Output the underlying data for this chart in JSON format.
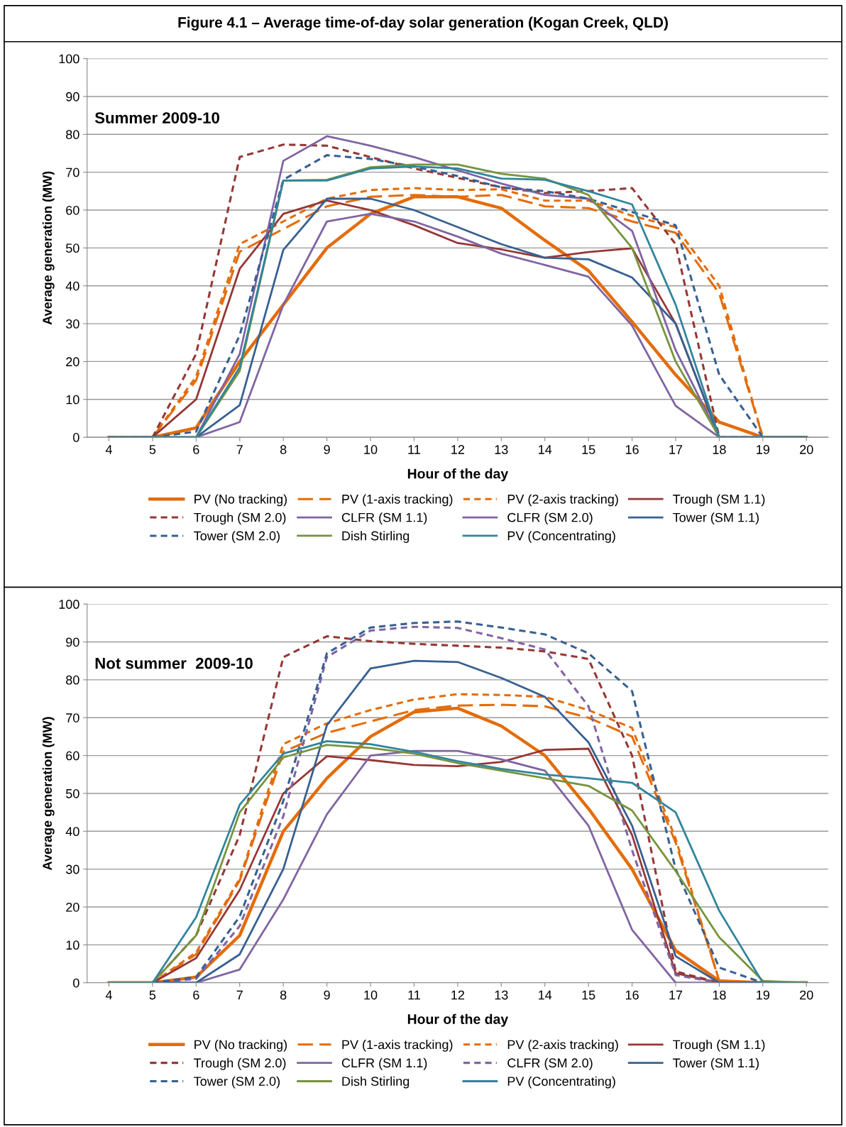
{
  "chart_data": [
    {
      "type": "line",
      "title": "Figure 4.1 – Average time-of-day solar generation (Kogan Creek, QLD)",
      "subtitle": "Summer 2009-10",
      "xlabel": "Hour of the day",
      "ylabel": "Average generation (MW)",
      "categories": [
        "4",
        "5",
        "6",
        "7",
        "8",
        "9",
        "10",
        "11",
        "12",
        "13",
        "14",
        "15",
        "16",
        "17",
        "18",
        "19",
        "20"
      ],
      "ylim": [
        0,
        100
      ],
      "yticks": [
        0,
        10,
        20,
        30,
        40,
        50,
        60,
        70,
        80,
        90,
        100
      ],
      "grid": "y",
      "legend": "bottom",
      "marker": "none",
      "series": [
        {
          "name": "PV (No tracking)",
          "color": "#e46c0a",
          "line_style": "solid",
          "values": [
            0,
            0,
            2.5,
            20,
            35,
            50,
            59,
            63.5,
            63.5,
            60.5,
            52,
            44,
            30.5,
            16.5,
            4,
            0,
            0
          ]
        },
        {
          "name": "PV (1-axis tracking)",
          "color": "#e46c0a",
          "line_style": "dashed",
          "values": [
            0,
            0,
            15,
            49,
            55,
            61,
            63.5,
            64,
            63.5,
            64,
            61,
            60.5,
            57,
            54,
            38,
            0,
            0
          ]
        },
        {
          "name": "PV (2-axis tracking)",
          "color": "#e46c0a",
          "line_style": "dotted",
          "values": [
            0,
            0,
            16,
            51,
            57,
            63,
            65.3,
            65.8,
            65.3,
            65.5,
            62.5,
            62.5,
            58.5,
            55.5,
            40,
            0,
            0
          ]
        },
        {
          "name": "Trough (SM 1.1)",
          "color": "#953735",
          "line_style": "solid",
          "values": [
            0,
            0,
            10,
            44.5,
            59,
            62.5,
            60,
            56,
            51.3,
            49.6,
            47.4,
            48.9,
            49.9,
            30,
            0,
            0,
            0
          ]
        },
        {
          "name": "Trough (SM 2.0)",
          "color": "#953735",
          "line_style": "dotted",
          "values": [
            0,
            0,
            22,
            74,
            77.3,
            77,
            74,
            71,
            68.5,
            66,
            64.5,
            65,
            65.8,
            51,
            0,
            0,
            0
          ]
        },
        {
          "name": "CLFR (SM 1.1)",
          "color": "#8064a2",
          "line_style": "solid",
          "values": [
            0,
            0,
            0,
            4,
            35,
            57,
            59,
            57,
            53,
            48.5,
            45.5,
            42.4,
            29.5,
            8.3,
            0,
            0,
            0
          ]
        },
        {
          "name": "CLFR (SM 2.0)",
          "color": "#8064a2",
          "line_style": "solid",
          "values": [
            0,
            0,
            0,
            22,
            73,
            79.5,
            77,
            74,
            70.5,
            67,
            64,
            63,
            54.5,
            23,
            0,
            0,
            0
          ]
        },
        {
          "name": "Tower (SM 1.1)",
          "color": "#376092",
          "line_style": "solid",
          "values": [
            0,
            0,
            0,
            8.5,
            49.5,
            63,
            63,
            60,
            55.5,
            51,
            47.4,
            47,
            42.2,
            30,
            0,
            0,
            0
          ]
        },
        {
          "name": "Tower (SM 2.0)",
          "color": "#376092",
          "line_style": "dotted",
          "values": [
            0,
            0,
            1.5,
            27,
            68,
            74.5,
            73.5,
            71.5,
            69,
            66,
            65,
            63,
            59.5,
            56,
            16.5,
            0,
            0
          ]
        },
        {
          "name": "Dish Stirling",
          "color": "#77933c",
          "line_style": "solid",
          "values": [
            0,
            0,
            0,
            17.5,
            67.8,
            68,
            71.3,
            72,
            72,
            69.6,
            68.3,
            64,
            50,
            20,
            0,
            0,
            0
          ]
        },
        {
          "name": "PV (Concentrating)",
          "color": "#31859c",
          "line_style": "solid",
          "values": [
            0,
            0,
            0,
            18.5,
            67.8,
            67.8,
            71,
            71.5,
            71,
            68.3,
            68,
            65,
            61.5,
            35,
            0,
            0,
            0
          ]
        }
      ]
    },
    {
      "type": "line",
      "subtitle": "Not summer  2009-10",
      "xlabel": "Hour of the day",
      "ylabel": "Average generation (MW)",
      "categories": [
        "4",
        "5",
        "6",
        "7",
        "8",
        "9",
        "10",
        "11",
        "12",
        "13",
        "14",
        "15",
        "16",
        "17",
        "18",
        "19",
        "20"
      ],
      "ylim": [
        0,
        100
      ],
      "yticks": [
        0,
        10,
        20,
        30,
        40,
        50,
        60,
        70,
        80,
        90,
        100
      ],
      "grid": "y",
      "legend": "bottom",
      "marker": "none",
      "series": [
        {
          "name": "PV (No tracking)",
          "color": "#e46c0a",
          "line_style": "solid",
          "values": [
            0,
            0,
            1.5,
            12.5,
            40,
            54,
            65,
            71.5,
            72.5,
            67.8,
            60,
            46,
            30,
            8.5,
            0.5,
            0,
            0
          ]
        },
        {
          "name": "PV (1-axis tracking)",
          "color": "#e46c0a",
          "line_style": "dashed",
          "values": [
            0,
            0,
            7.5,
            27,
            61,
            66,
            69,
            72,
            73.2,
            73.4,
            73,
            70,
            65,
            37,
            0.5,
            0,
            0
          ]
        },
        {
          "name": "PV (2-axis tracking)",
          "color": "#e46c0a",
          "line_style": "dotted",
          "values": [
            0,
            0,
            8,
            27.5,
            63,
            68.5,
            72,
            74.8,
            76.2,
            76,
            75.5,
            72,
            67.3,
            38,
            0.5,
            0,
            0
          ]
        },
        {
          "name": "Trough (SM 1.1)",
          "color": "#953735",
          "line_style": "solid",
          "values": [
            0,
            0,
            6.5,
            24.5,
            50,
            59.8,
            58.8,
            57.5,
            57.2,
            58.3,
            61.5,
            61.8,
            39,
            2.5,
            0,
            0,
            0
          ]
        },
        {
          "name": "Trough (SM 2.0)",
          "color": "#953735",
          "line_style": "dotted",
          "values": [
            0,
            0,
            12.5,
            39,
            86,
            91.5,
            90.2,
            89.5,
            89,
            88.5,
            87.5,
            85.5,
            60,
            3,
            0,
            0,
            0
          ]
        },
        {
          "name": "CLFR (SM 1.1)",
          "color": "#8064a2",
          "line_style": "solid",
          "values": [
            0,
            0,
            0,
            3.5,
            22,
            44.5,
            60,
            61.2,
            61.2,
            59,
            56,
            41.5,
            14,
            0,
            0,
            0,
            0
          ]
        },
        {
          "name": "CLFR (SM 2.0)",
          "color": "#8064a2",
          "line_style": "dotted",
          "values": [
            0,
            0,
            1,
            15,
            44,
            86,
            93,
            94,
            93.7,
            91,
            88,
            73,
            35,
            2,
            0,
            0,
            0
          ]
        },
        {
          "name": "Tower (SM 1.1)",
          "color": "#376092",
          "line_style": "solid",
          "values": [
            0,
            0,
            0,
            7.5,
            30,
            68,
            83,
            85,
            84.7,
            80.5,
            75.5,
            63.5,
            41.5,
            7,
            0,
            0,
            0
          ]
        },
        {
          "name": "Tower (SM 2.0)",
          "color": "#376092",
          "line_style": "dotted",
          "values": [
            0,
            0,
            1.5,
            17.5,
            48,
            87,
            93.8,
            95,
            95.4,
            93.8,
            92,
            87,
            77,
            30,
            4,
            0,
            0
          ]
        },
        {
          "name": "Dish Stirling",
          "color": "#77933c",
          "line_style": "solid",
          "values": [
            0,
            0,
            12.5,
            45,
            59.5,
            62.8,
            62,
            60.5,
            58,
            56,
            54,
            52,
            45.5,
            29.5,
            12,
            0.5,
            0
          ]
        },
        {
          "name": "PV (Concentrating)",
          "color": "#31859c",
          "line_style": "solid",
          "values": [
            0,
            0,
            17.3,
            47,
            60.5,
            63.8,
            63,
            61,
            58.5,
            56.5,
            55,
            54,
            52.8,
            45,
            19,
            0,
            0
          ]
        }
      ]
    }
  ]
}
